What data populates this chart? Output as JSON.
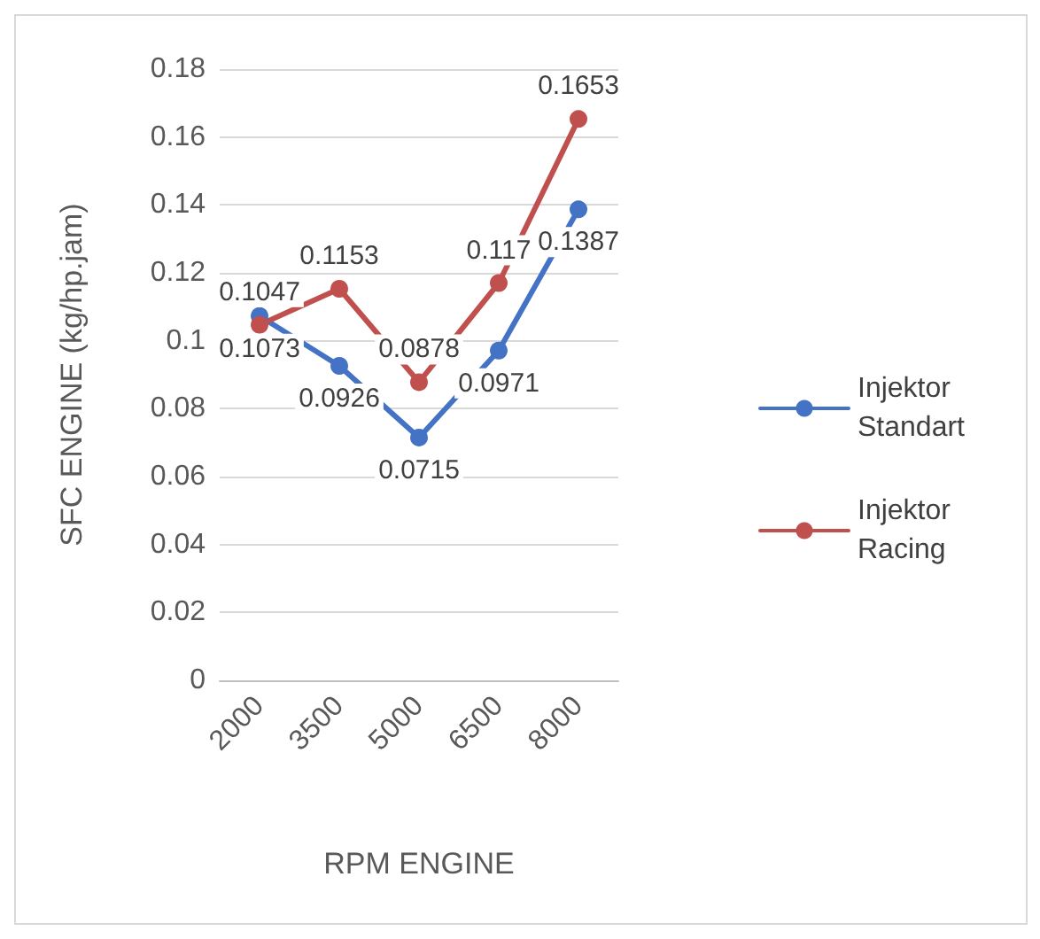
{
  "chart_data": {
    "type": "line",
    "xlabel": "RPM ENGINE",
    "ylabel": "SFC ENGINE (kg/hp.jam)",
    "categories": [
      "2000",
      "3500",
      "5000",
      "6500",
      "8000"
    ],
    "series": [
      {
        "name": "Injektor Standart",
        "color": "#4472c4",
        "values": [
          0.1073,
          0.0926,
          0.0715,
          0.0971,
          0.1387
        ]
      },
      {
        "name": "Injektor Racing",
        "color": "#c0504d",
        "values": [
          0.1047,
          0.1153,
          0.0878,
          0.117,
          0.1653
        ]
      }
    ],
    "ylim": [
      0,
      0.18
    ],
    "yticks": [
      0,
      0.02,
      0.04,
      0.06,
      0.08,
      0.1,
      0.12,
      0.14,
      0.16,
      0.18
    ],
    "grid": "y",
    "legend": "right",
    "marker": "circle",
    "line_style": "solid",
    "data_labels": true
  }
}
